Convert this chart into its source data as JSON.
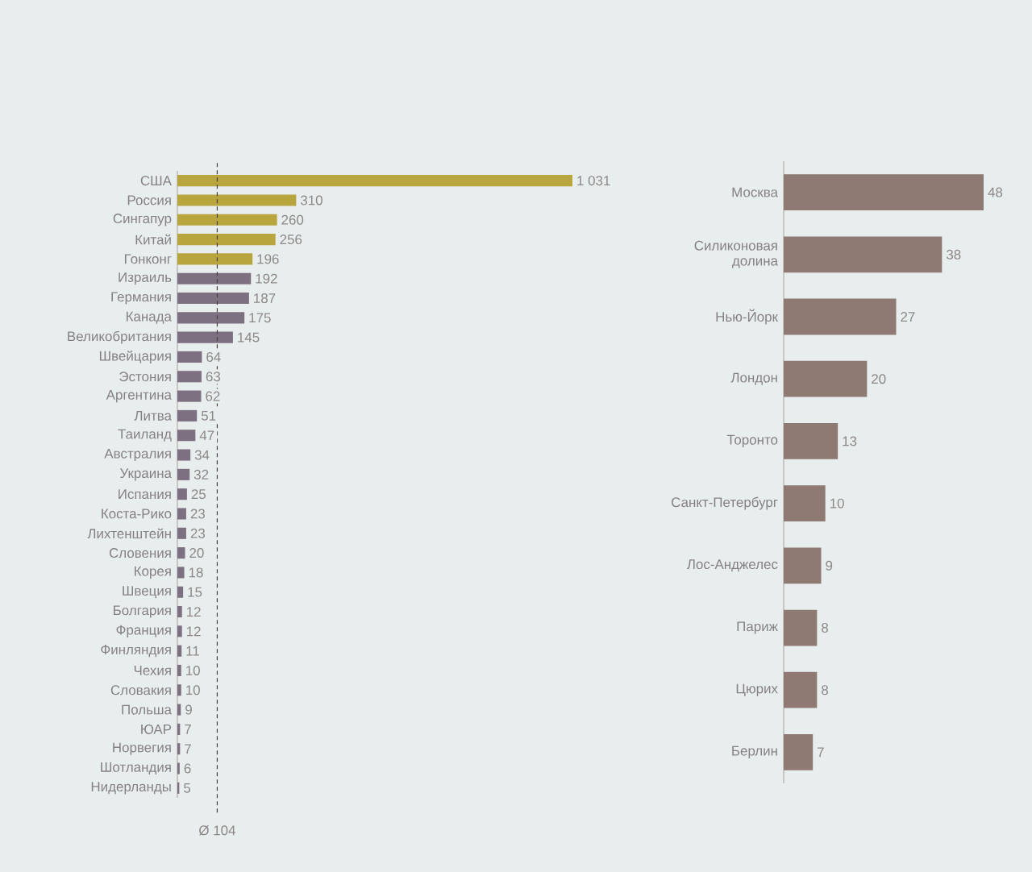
{
  "chart_data": [
    {
      "type": "bar",
      "orientation": "horizontal",
      "categories": [
        "США",
        "Россия",
        "Сингапур",
        "Китай",
        "Гонконг",
        "Израиль",
        "Германия",
        "Канада",
        "Великобритания",
        "Швейцария",
        "Эстония",
        "Аргентина",
        "Литва",
        "Таиланд",
        "Австралия",
        "Украина",
        "Испания",
        "Коста-Рико",
        "Лихтенштейн",
        "Словения",
        "Корея",
        "Швеция",
        "Болгария",
        "Франция",
        "Финляндия",
        "Чехия",
        "Словакия",
        "Польша",
        "ЮАР",
        "Норвегия",
        "Шотландия",
        "Нидерланды"
      ],
      "values": [
        1031,
        310,
        260,
        256,
        196,
        192,
        187,
        175,
        145,
        64,
        63,
        62,
        51,
        47,
        34,
        32,
        25,
        23,
        23,
        20,
        18,
        15,
        12,
        12,
        11,
        10,
        10,
        9,
        7,
        7,
        6,
        5
      ],
      "colors": [
        "#b8a53e",
        "#b8a53e",
        "#b8a53e",
        "#b8a53e",
        "#b8a53e",
        "#7d7080",
        "#7d7080",
        "#7d7080",
        "#7d7080",
        "#7d7080",
        "#7d7080",
        "#7d7080",
        "#7d7080",
        "#7d7080",
        "#7d7080",
        "#7d7080",
        "#7d7080",
        "#7d7080",
        "#7d7080",
        "#7d7080",
        "#7d7080",
        "#7d7080",
        "#7d7080",
        "#7d7080",
        "#7d7080",
        "#7d7080",
        "#7d7080",
        "#7d7080",
        "#7d7080",
        "#7d7080",
        "#7d7080",
        "#7d7080"
      ],
      "value_labels": [
        "1 031",
        "310",
        "260",
        "256",
        "196",
        "192",
        "187",
        "175",
        "145",
        "64",
        "63",
        "62",
        "51",
        "47",
        "34",
        "32",
        "25",
        "23",
        "23",
        "20",
        "18",
        "15",
        "12",
        "12",
        "11",
        "10",
        "10",
        "9",
        "7",
        "7",
        "6",
        "5"
      ],
      "ref_lines": [
        {
          "axis": "x",
          "value": 104,
          "label": "Ø 104",
          "line_style": "dashed",
          "color": "#4a3f3f"
        }
      ]
    },
    {
      "type": "bar",
      "orientation": "horizontal",
      "categories": [
        "Москва",
        "Силиконовая долина",
        "Нью-Йорк",
        "Лондон",
        "Торонто",
        "Санкт-Петербург",
        "Лос-Анджелес",
        "Париж",
        "Цюрих",
        "Берлин"
      ],
      "values": [
        48,
        38,
        27,
        20,
        13,
        10,
        9,
        8,
        8,
        7
      ],
      "color": "#8e7a72",
      "data_labels": true
    }
  ]
}
